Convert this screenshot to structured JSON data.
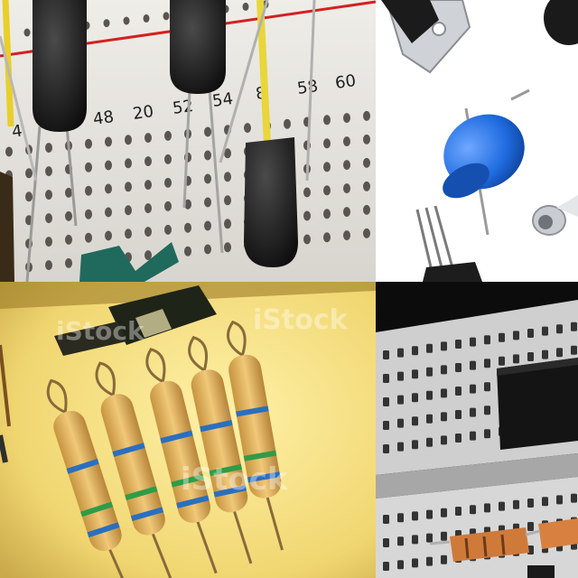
{
  "collage": {
    "panels": [
      {
        "name": "breadboard-with-transistors-closeup"
      },
      {
        "name": "electronic-components-on-white"
      },
      {
        "name": "resistors-on-yellow"
      },
      {
        "name": "breadboard-with-ic-chip"
      }
    ]
  },
  "breadboard_numbers": [
    "4",
    "48",
    "20",
    "52",
    "54",
    "8",
    "58",
    "60"
  ],
  "watermarks": {
    "yellow_panel_top": "iStock",
    "yellow_panel_top_left": "iStock",
    "yellow_panel_bottom": "iStock"
  },
  "colors": {
    "breadboard": "#e6e4de",
    "rail_red": "#d42020",
    "led_blue": "#1f6be0",
    "yellow_bg": "#f4dc7a",
    "resistor_body": "#e8b660",
    "band_blue": "#2a6fc0",
    "band_green": "#2f9c48"
  }
}
